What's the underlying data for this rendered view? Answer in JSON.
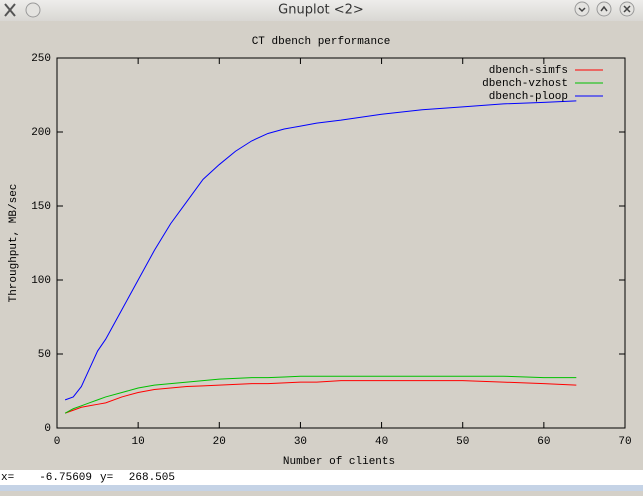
{
  "window": {
    "title": "Gnuplot <2>"
  },
  "status": {
    "x_label": "x=",
    "x_value": "-6.75609",
    "y_label": "y=",
    "y_value": "268.505"
  },
  "chart_data": {
    "type": "line",
    "title": "CT dbench performance",
    "x_label": "Number of clients",
    "y_label": "Throughput, MB/sec",
    "x": [
      1,
      2,
      3,
      4,
      5,
      6,
      8,
      10,
      12,
      14,
      16,
      18,
      20,
      22,
      24,
      26,
      28,
      30,
      32,
      35,
      40,
      45,
      50,
      55,
      60,
      64
    ],
    "series": [
      {
        "name": "dbench-simfs",
        "color": "#ff0000",
        "values": [
          10,
          12,
          14,
          15,
          16,
          17,
          21,
          24,
          26,
          27,
          28,
          28.5,
          29,
          29.5,
          30,
          30,
          30.5,
          31,
          31,
          32,
          32,
          32,
          32,
          31,
          30,
          29
        ]
      },
      {
        "name": "dbench-vzhost",
        "color": "#00c000",
        "values": [
          10,
          13,
          15,
          17,
          19,
          21,
          24,
          27,
          29,
          30,
          31,
          32,
          33,
          33.5,
          34,
          34,
          34.5,
          35,
          35,
          35,
          35,
          35,
          35,
          35,
          34,
          34
        ]
      },
      {
        "name": "dbench-ploop",
        "color": "#0000ff",
        "values": [
          19,
          21,
          28,
          40,
          52,
          60,
          80,
          100,
          120,
          138,
          153,
          168,
          178,
          187,
          194,
          199,
          202,
          204,
          206,
          208,
          212,
          215,
          217,
          219,
          220,
          221
        ]
      }
    ],
    "xlim": [
      0,
      70
    ],
    "xticks": [
      0,
      10,
      20,
      30,
      40,
      50,
      60,
      70
    ],
    "ylim": [
      0,
      250
    ],
    "yticks": [
      0,
      50,
      100,
      150,
      200,
      250
    ],
    "legend": "top-right"
  }
}
